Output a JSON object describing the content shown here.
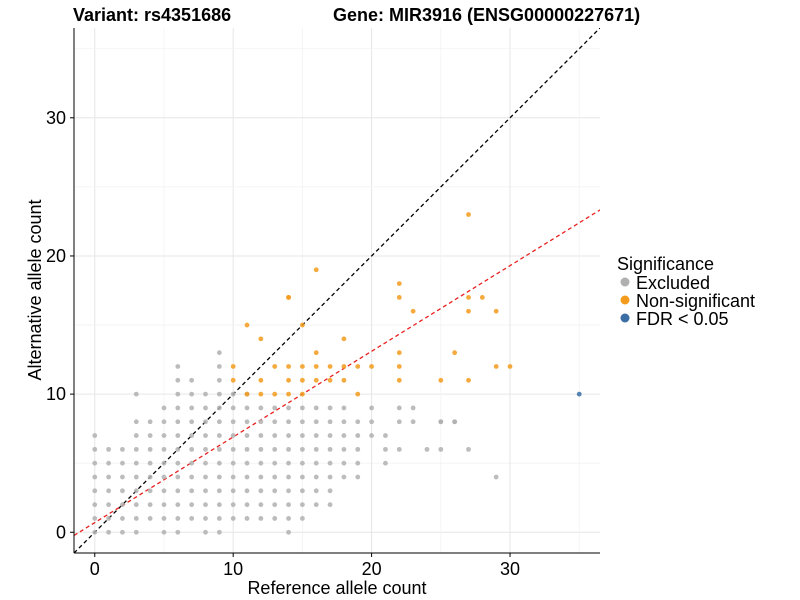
{
  "chart_data": {
    "type": "scatter",
    "title_variant": "Variant: rs4351686",
    "title_gene": "Gene: MIR3916 (ENSG00000227671)",
    "xlabel": "Reference allele count",
    "ylabel": "Alternative allele count",
    "xlim": [
      -1.5,
      36.5
    ],
    "ylim": [
      -1.5,
      36.5
    ],
    "x_ticks": [
      0,
      10,
      20,
      30
    ],
    "y_ticks": [
      0,
      10,
      20,
      30
    ],
    "grid": true,
    "legend": {
      "title": "Significance",
      "position": "right",
      "entries": [
        {
          "label": "Excluded",
          "color": "#b0b0b0"
        },
        {
          "label": "Non-significant",
          "color": "#f39b1c"
        },
        {
          "label": "FDR < 0.05",
          "color": "#3a6ea5"
        }
      ]
    },
    "reference_lines": [
      {
        "name": "",
        "slope": 1,
        "intercept": 0,
        "color": "#000000",
        "style": "dashed"
      },
      {
        "name": "",
        "slope": 0.62,
        "intercept": 0.7,
        "color": "#e8201f",
        "style": "dashed"
      }
    ],
    "series": [
      {
        "name": "Excluded",
        "color": "#b0b0b0",
        "points": [
          [
            0,
            0
          ],
          [
            0,
            1
          ],
          [
            0,
            2
          ],
          [
            0,
            3
          ],
          [
            0,
            4
          ],
          [
            0,
            5
          ],
          [
            0,
            6
          ],
          [
            0,
            7
          ],
          [
            1,
            0
          ],
          [
            1,
            1
          ],
          [
            1,
            2
          ],
          [
            1,
            3
          ],
          [
            1,
            4
          ],
          [
            1,
            5
          ],
          [
            1,
            6
          ],
          [
            2,
            0
          ],
          [
            2,
            1
          ],
          [
            2,
            2
          ],
          [
            2,
            3
          ],
          [
            2,
            4
          ],
          [
            2,
            5
          ],
          [
            2,
            6
          ],
          [
            3,
            0
          ],
          [
            3,
            1
          ],
          [
            3,
            2
          ],
          [
            3,
            3
          ],
          [
            3,
            4
          ],
          [
            3,
            5
          ],
          [
            3,
            6
          ],
          [
            3,
            7
          ],
          [
            3,
            8
          ],
          [
            3,
            10
          ],
          [
            4,
            1
          ],
          [
            4,
            2
          ],
          [
            4,
            3
          ],
          [
            4,
            4
          ],
          [
            4,
            5
          ],
          [
            4,
            6
          ],
          [
            4,
            7
          ],
          [
            4,
            8
          ],
          [
            5,
            0
          ],
          [
            5,
            1
          ],
          [
            5,
            2
          ],
          [
            5,
            3
          ],
          [
            5,
            4
          ],
          [
            5,
            5
          ],
          [
            5,
            6
          ],
          [
            5,
            7
          ],
          [
            5,
            8
          ],
          [
            5,
            9
          ],
          [
            6,
            0
          ],
          [
            6,
            1
          ],
          [
            6,
            2
          ],
          [
            6,
            3
          ],
          [
            6,
            4
          ],
          [
            6,
            5
          ],
          [
            6,
            6
          ],
          [
            6,
            7
          ],
          [
            6,
            8
          ],
          [
            6,
            9
          ],
          [
            6,
            10
          ],
          [
            6,
            11
          ],
          [
            6,
            12
          ],
          [
            7,
            1
          ],
          [
            7,
            2
          ],
          [
            7,
            3
          ],
          [
            7,
            4
          ],
          [
            7,
            5
          ],
          [
            7,
            6
          ],
          [
            7,
            7
          ],
          [
            7,
            8
          ],
          [
            7,
            9
          ],
          [
            7,
            10
          ],
          [
            7,
            11
          ],
          [
            8,
            0
          ],
          [
            8,
            1
          ],
          [
            8,
            2
          ],
          [
            8,
            3
          ],
          [
            8,
            4
          ],
          [
            8,
            5
          ],
          [
            8,
            6
          ],
          [
            8,
            7
          ],
          [
            8,
            8
          ],
          [
            8,
            9
          ],
          [
            8,
            10
          ],
          [
            9,
            0
          ],
          [
            9,
            1
          ],
          [
            9,
            2
          ],
          [
            9,
            3
          ],
          [
            9,
            4
          ],
          [
            9,
            5
          ],
          [
            9,
            6
          ],
          [
            9,
            7
          ],
          [
            9,
            8
          ],
          [
            9,
            9
          ],
          [
            9,
            10
          ],
          [
            9,
            11
          ],
          [
            9,
            12
          ],
          [
            9,
            13
          ],
          [
            10,
            1
          ],
          [
            10,
            2
          ],
          [
            10,
            3
          ],
          [
            10,
            4
          ],
          [
            10,
            5
          ],
          [
            10,
            6
          ],
          [
            10,
            7
          ],
          [
            10,
            8
          ],
          [
            10,
            9
          ],
          [
            10,
            10
          ],
          [
            11,
            1
          ],
          [
            11,
            2
          ],
          [
            11,
            3
          ],
          [
            11,
            4
          ],
          [
            11,
            5
          ],
          [
            11,
            6
          ],
          [
            11,
            7
          ],
          [
            11,
            8
          ],
          [
            11,
            9
          ],
          [
            11,
            10
          ],
          [
            12,
            1
          ],
          [
            12,
            2
          ],
          [
            12,
            3
          ],
          [
            12,
            4
          ],
          [
            12,
            5
          ],
          [
            12,
            6
          ],
          [
            12,
            7
          ],
          [
            12,
            8
          ],
          [
            12,
            9
          ],
          [
            13,
            1
          ],
          [
            13,
            2
          ],
          [
            13,
            3
          ],
          [
            13,
            4
          ],
          [
            13,
            5
          ],
          [
            13,
            6
          ],
          [
            13,
            7
          ],
          [
            13,
            8
          ],
          [
            13,
            9
          ],
          [
            14,
            0
          ],
          [
            14,
            1
          ],
          [
            14,
            2
          ],
          [
            14,
            3
          ],
          [
            14,
            4
          ],
          [
            14,
            5
          ],
          [
            14,
            6
          ],
          [
            14,
            7
          ],
          [
            14,
            8
          ],
          [
            14,
            9
          ],
          [
            15,
            1
          ],
          [
            15,
            2
          ],
          [
            15,
            3
          ],
          [
            15,
            4
          ],
          [
            15,
            5
          ],
          [
            15,
            6
          ],
          [
            15,
            7
          ],
          [
            15,
            8
          ],
          [
            15,
            9
          ],
          [
            16,
            2
          ],
          [
            16,
            3
          ],
          [
            16,
            4
          ],
          [
            16,
            5
          ],
          [
            16,
            6
          ],
          [
            16,
            7
          ],
          [
            16,
            8
          ],
          [
            16,
            9
          ],
          [
            17,
            2
          ],
          [
            17,
            3
          ],
          [
            17,
            4
          ],
          [
            17,
            5
          ],
          [
            17,
            6
          ],
          [
            17,
            7
          ],
          [
            17,
            8
          ],
          [
            17,
            9
          ],
          [
            18,
            4
          ],
          [
            18,
            5
          ],
          [
            18,
            6
          ],
          [
            18,
            7
          ],
          [
            18,
            8
          ],
          [
            18,
            9
          ],
          [
            19,
            4
          ],
          [
            19,
            5
          ],
          [
            19,
            6
          ],
          [
            19,
            7
          ],
          [
            19,
            8
          ],
          [
            20,
            7
          ],
          [
            20,
            8
          ],
          [
            20,
            9
          ],
          [
            21,
            5
          ],
          [
            21,
            6
          ],
          [
            21,
            7
          ],
          [
            22,
            6
          ],
          [
            22,
            8
          ],
          [
            22,
            9
          ],
          [
            23,
            8
          ],
          [
            23,
            9
          ],
          [
            24,
            6
          ],
          [
            25,
            6
          ],
          [
            25,
            8
          ],
          [
            26,
            8
          ],
          [
            27,
            6
          ],
          [
            29,
            4
          ],
          [
            26,
            8
          ],
          [
            25,
            8
          ]
        ]
      },
      {
        "name": "Non-significant",
        "color": "#f39b1c",
        "points": [
          [
            10,
            11
          ],
          [
            10,
            12
          ],
          [
            11,
            10
          ],
          [
            11,
            15
          ],
          [
            12,
            10
          ],
          [
            12,
            11
          ],
          [
            12,
            14
          ],
          [
            13,
            10
          ],
          [
            13,
            12
          ],
          [
            14,
            10
          ],
          [
            14,
            11
          ],
          [
            14,
            12
          ],
          [
            14,
            17
          ],
          [
            14,
            17
          ],
          [
            15,
            11
          ],
          [
            15,
            12
          ],
          [
            15,
            15
          ],
          [
            15,
            10
          ],
          [
            16,
            11
          ],
          [
            16,
            12
          ],
          [
            16,
            13
          ],
          [
            16,
            19
          ],
          [
            17,
            11
          ],
          [
            17,
            12
          ],
          [
            18,
            11
          ],
          [
            18,
            12
          ],
          [
            18,
            14
          ],
          [
            19,
            10
          ],
          [
            19,
            12
          ],
          [
            20,
            12
          ],
          [
            22,
            11
          ],
          [
            22,
            12
          ],
          [
            22,
            13
          ],
          [
            22,
            17
          ],
          [
            22,
            18
          ],
          [
            23,
            16
          ],
          [
            25,
            11
          ],
          [
            26,
            13
          ],
          [
            27,
            11
          ],
          [
            27,
            16
          ],
          [
            27,
            17
          ],
          [
            27,
            23
          ],
          [
            28,
            17
          ],
          [
            29,
            16
          ],
          [
            29,
            12
          ],
          [
            30,
            12
          ]
        ]
      },
      {
        "name": "FDR < 0.05",
        "color": "#3a6ea5",
        "points": [
          [
            35,
            10
          ]
        ]
      }
    ]
  }
}
